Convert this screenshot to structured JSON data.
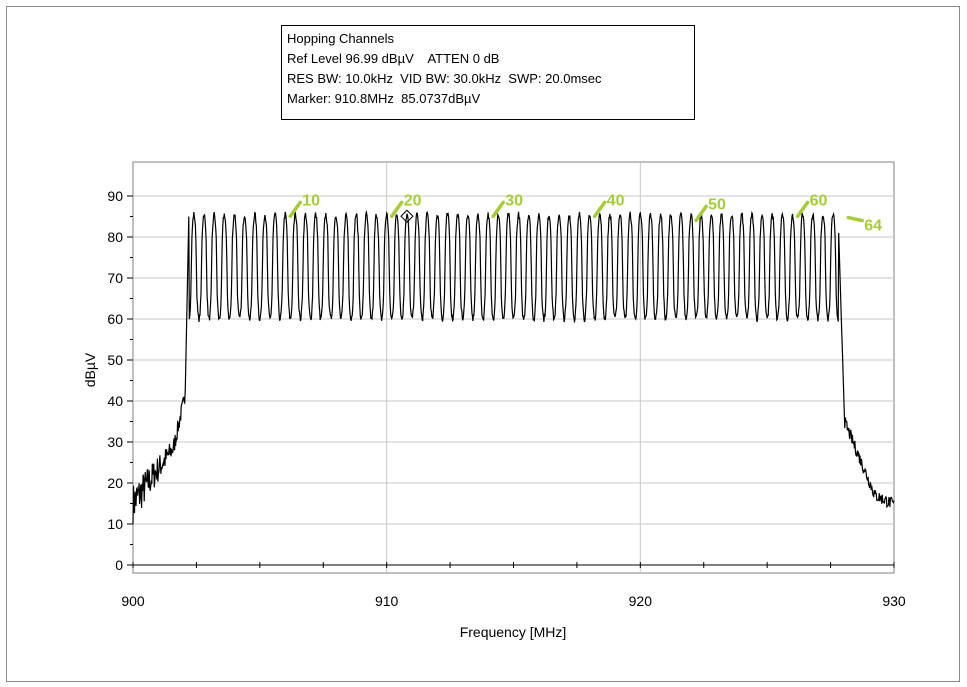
{
  "info": {
    "title": "Hopping Channels",
    "ref_line": "Ref Level 96.99 dBµV    ATTEN 0 dB",
    "bw_line": "RES BW: 10.0kHz  VID BW: 30.0kHz  SWP: 20.0msec",
    "marker_line": "Marker: 910.8MHz  85.0737dBµV"
  },
  "chart_data": {
    "type": "line",
    "title": "Hopping Channels",
    "xlabel": "Frequency [MHz]",
    "ylabel": "dBµV",
    "xlim": [
      900,
      930
    ],
    "ylim": [
      0,
      95
    ],
    "x_ticks": [
      900,
      910,
      920,
      930
    ],
    "y_ticks": [
      0,
      10,
      20,
      30,
      40,
      50,
      60,
      70,
      80,
      90
    ],
    "grid": true,
    "line_color": "#000000",
    "annotation_color": "#a6cc3a",
    "channels": {
      "count": 64,
      "first_center_mhz": 902.4,
      "spacing_mhz": 0.4,
      "peak_dbuv": 85.5,
      "valley_dbuv": 60
    },
    "noise_floor": {
      "left_start_mhz": 900,
      "left_start_dbuv": 15,
      "right_end_mhz": 930,
      "right_end_dbuv": 14
    },
    "marker": {
      "x": 910.8,
      "y": 85.07
    },
    "annotations": [
      {
        "text": "10",
        "x": 906.2,
        "y": 87
      },
      {
        "text": "20",
        "x": 910.2,
        "y": 87
      },
      {
        "text": "30",
        "x": 914.2,
        "y": 87
      },
      {
        "text": "40",
        "x": 918.2,
        "y": 87
      },
      {
        "text": "50",
        "x": 922.2,
        "y": 86
      },
      {
        "text": "60",
        "x": 926.2,
        "y": 87
      },
      {
        "text": "64",
        "x": 927.8,
        "y": 84
      }
    ]
  }
}
